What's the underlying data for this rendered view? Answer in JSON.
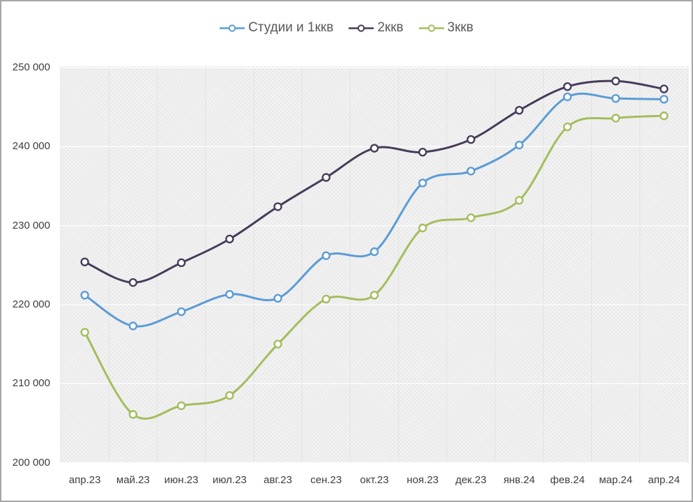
{
  "chart_data": {
    "type": "line",
    "smooth": true,
    "title": "",
    "xlabel": "",
    "ylabel": "",
    "grid": true,
    "legend_position": "top",
    "categories": [
      "апр.23",
      "май.23",
      "июн.23",
      "июл.23",
      "авг.23",
      "сен.23",
      "окт.23",
      "ноя.23",
      "дек.23",
      "янв.24",
      "фев.24",
      "мар.24",
      "апр.24"
    ],
    "series": [
      {
        "name": "Студии и 1ккв",
        "color": "#5B9BD5",
        "values": [
          221200,
          217300,
          219100,
          221300,
          220800,
          226200,
          226700,
          235400,
          236900,
          240200,
          246300,
          246100,
          246000
        ]
      },
      {
        "name": "2ккв",
        "color": "#463C5A",
        "values": [
          225400,
          222800,
          225300,
          228300,
          232400,
          236100,
          239800,
          239300,
          240900,
          244600,
          247600,
          248300,
          247300
        ]
      },
      {
        "name": "3ккв",
        "color": "#A2BE5D",
        "values": [
          216500,
          206100,
          207200,
          208500,
          215000,
          220700,
          221200,
          229700,
          231000,
          233200,
          242500,
          243600,
          243900
        ]
      }
    ],
    "ylim": [
      200000,
      250000
    ],
    "ytick_step": 10000,
    "ytick_labels": [
      "200 000",
      "210 000",
      "220 000",
      "230 000",
      "240 000",
      "250 000"
    ]
  },
  "style": {
    "marker": "open-circle",
    "axis_text_color": "#3d3d3d",
    "legend_text_color": "#595959",
    "plot_bg_color": "#f2f2f2",
    "grid_h_color": "#fdfdfd",
    "grid_v_color": "#e2e2e2",
    "frame_border_color": "#a6a6a6"
  }
}
